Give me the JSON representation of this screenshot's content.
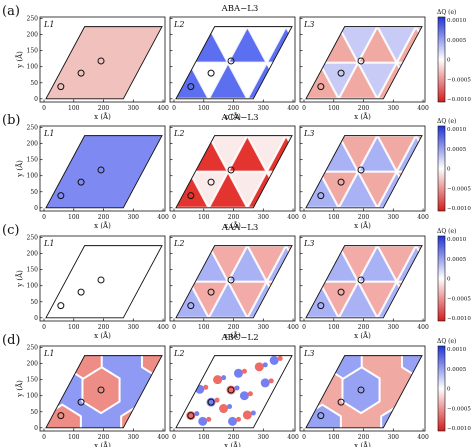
{
  "figure": {
    "rows": [
      {
        "tag": "(a)",
        "title": "ABA−L3",
        "panels": [
          {
            "label": "L1",
            "pattern": "uniform",
            "tint": "#f1c1bd"
          },
          {
            "label": "L2",
            "pattern": "triangles",
            "fill_a": "#5c6ff0",
            "fill_b": "#ffffff"
          },
          {
            "label": "L3",
            "pattern": "triangles",
            "fill_a": "#f0a9a3",
            "fill_b": "#c7cbf5"
          }
        ]
      },
      {
        "tag": "(b)",
        "title": "ACA−L3",
        "panels": [
          {
            "label": "L1",
            "pattern": "uniform",
            "tint": "#7f89f2"
          },
          {
            "label": "L2",
            "pattern": "triangles",
            "fill_a": "#e4342f",
            "fill_b": "#fbeaea"
          },
          {
            "label": "L3",
            "pattern": "triangles",
            "fill_a": "#aab2f6",
            "fill_b": "#f1a9a4"
          }
        ]
      },
      {
        "tag": "(c)",
        "title": "AAA−L3",
        "panels": [
          {
            "label": "L1",
            "pattern": "uniform",
            "tint": "#ffffff"
          },
          {
            "label": "L2",
            "pattern": "triangles",
            "fill_a": "#aab2f6",
            "fill_b": "#f2aba6"
          },
          {
            "label": "L3",
            "pattern": "triangles",
            "fill_a": "#aab2f6",
            "fill_b": "#f2aba6"
          }
        ]
      },
      {
        "tag": "(d)",
        "title": "ABC−L2",
        "panels": [
          {
            "label": "L1",
            "pattern": "hexagon",
            "fill_a": "#ee8c86",
            "fill_b": "#8f9af4"
          },
          {
            "label": "L2",
            "pattern": "speckle",
            "fill_a": "#ee6b66",
            "fill_b": "#7480f2"
          },
          {
            "label": "L3",
            "pattern": "hexagon",
            "fill_a": "#98a2f5",
            "fill_b": "#f1a9a4"
          }
        ]
      }
    ],
    "ylabel": "y (Å)",
    "xlabel": "x (Å)",
    "yticks": [
      "0",
      "50",
      "100",
      "150",
      "200",
      "250"
    ],
    "xticks": [
      "0",
      "100",
      "200",
      "300",
      "400"
    ],
    "colorbar": {
      "label": "ΔQ (e)",
      "ticks": [
        "0.0010",
        "0.0005",
        "0",
        "−0.0005",
        "−0.0010"
      ],
      "top_color": "#2233d6",
      "mid_color": "#ffffff",
      "bottom_color": "#d21d1d"
    },
    "markers_A": [
      [
        70,
        38
      ],
      [
        138,
        80
      ],
      [
        205,
        118
      ]
    ]
  }
}
